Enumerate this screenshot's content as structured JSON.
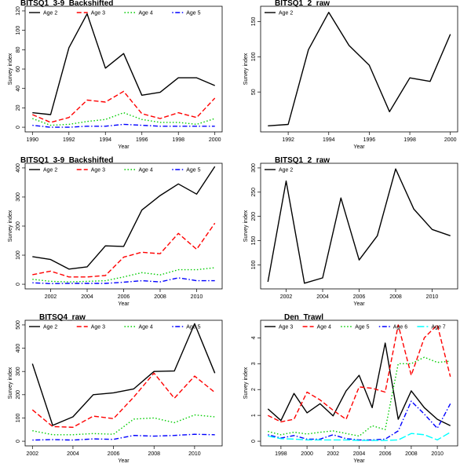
{
  "chart_data": [
    {
      "type": "line",
      "title": "BITSQ1_3-9_Backshifted",
      "xlabel": "Year",
      "ylabel": "Survey index",
      "xlim": [
        1990,
        2000
      ],
      "ylim": [
        0,
        120
      ],
      "xticks": [
        1990,
        1992,
        1994,
        1996,
        1998,
        2000
      ],
      "yticks": [
        0,
        20,
        40,
        60,
        80,
        100,
        120
      ],
      "x": [
        1990,
        1991,
        1992,
        1993,
        1994,
        1995,
        1996,
        1997,
        1998,
        1999,
        2000
      ],
      "legend": "top-left",
      "series": [
        {
          "name": "Age 2",
          "color": "#000000",
          "dash": "solid",
          "values": [
            15,
            13,
            82,
            117,
            61,
            76,
            33,
            36,
            51,
            51,
            43
          ]
        },
        {
          "name": "Age 3",
          "color": "#ff0000",
          "dash": "dashed",
          "values": [
            13,
            5,
            10,
            28,
            26,
            37,
            14,
            9,
            15,
            10,
            30
          ]
        },
        {
          "name": "Age 4",
          "color": "#00cc00",
          "dash": "dotted",
          "values": [
            9,
            2,
            3,
            6,
            8,
            15,
            8,
            5,
            5,
            3,
            9
          ]
        },
        {
          "name": "Age 5",
          "color": "#0000ff",
          "dash": "dotdash",
          "values": [
            2,
            0,
            0,
            1,
            1,
            3,
            2,
            1,
            1,
            1,
            1
          ]
        }
      ]
    },
    {
      "type": "line",
      "title": "BITSQ1_2_raw",
      "xlabel": "Year",
      "ylabel": "Survey index",
      "xlim": [
        1991,
        2000
      ],
      "ylim": [
        0,
        165
      ],
      "xticks": [
        1992,
        1994,
        1996,
        1998,
        2000
      ],
      "yticks": [
        50,
        100,
        150
      ],
      "x": [
        1991,
        1992,
        1993,
        1994,
        1995,
        1996,
        1997,
        1998,
        1999,
        2000
      ],
      "legend": "top-left",
      "series": [
        {
          "name": "Age 2",
          "color": "#000000",
          "dash": "solid",
          "values": [
            2,
            4,
            110,
            163,
            116,
            88,
            22,
            70,
            65,
            132
          ]
        }
      ]
    },
    {
      "type": "line",
      "title": "BITSQ1_3-9_Backshifted",
      "xlabel": "Year",
      "ylabel": "Survey index",
      "xlim": [
        2001,
        2011
      ],
      "ylim": [
        0,
        400
      ],
      "xticks": [
        2002,
        2004,
        2006,
        2008,
        2010
      ],
      "yticks": [
        0,
        100,
        200,
        300,
        400
      ],
      "x": [
        2001,
        2002,
        2003,
        2004,
        2005,
        2006,
        2007,
        2008,
        2009,
        2010,
        2011
      ],
      "legend": "top-left",
      "series": [
        {
          "name": "Age 2",
          "color": "#000000",
          "dash": "solid",
          "values": [
            95,
            85,
            52,
            60,
            132,
            130,
            255,
            305,
            345,
            310,
            405
          ]
        },
        {
          "name": "Age 3",
          "color": "#ff0000",
          "dash": "dashed",
          "values": [
            33,
            45,
            25,
            25,
            30,
            93,
            110,
            105,
            175,
            120,
            210
          ]
        },
        {
          "name": "Age 4",
          "color": "#00cc00",
          "dash": "dotted",
          "values": [
            17,
            10,
            8,
            10,
            12,
            25,
            40,
            32,
            50,
            50,
            57
          ]
        },
        {
          "name": "Age 5",
          "color": "#0000ff",
          "dash": "dotdash",
          "values": [
            5,
            2,
            3,
            3,
            3,
            7,
            12,
            8,
            22,
            12,
            12
          ]
        }
      ]
    },
    {
      "type": "line",
      "title": "BITSQ1_2_raw",
      "xlabel": "Year",
      "ylabel": "Survey index",
      "xlim": [
        2001,
        2011
      ],
      "ylim": [
        60,
        300
      ],
      "xticks": [
        2002,
        2004,
        2006,
        2008,
        2010
      ],
      "yticks": [
        100,
        150,
        200,
        250,
        300
      ],
      "x": [
        2001,
        2002,
        2003,
        2004,
        2005,
        2006,
        2007,
        2008,
        2009,
        2010,
        2011
      ],
      "legend": "top-left",
      "series": [
        {
          "name": "Age 2",
          "color": "#000000",
          "dash": "solid",
          "values": [
            65,
            273,
            62,
            73,
            238,
            110,
            160,
            298,
            215,
            173,
            160
          ]
        }
      ]
    },
    {
      "type": "line",
      "title": "BITSQ4_raw",
      "xlabel": "Year",
      "ylabel": "Survey index",
      "xlim": [
        2002,
        2011
      ],
      "ylim": [
        0,
        500
      ],
      "xticks": [
        2002,
        2004,
        2006,
        2008,
        2010
      ],
      "yticks": [
        0,
        100,
        200,
        300,
        400,
        500
      ],
      "x": [
        2002,
        2003,
        2004,
        2005,
        2006,
        2007,
        2008,
        2009,
        2010,
        2011
      ],
      "legend": "top-left",
      "series": [
        {
          "name": "Age 2",
          "color": "#000000",
          "dash": "solid",
          "values": [
            333,
            68,
            105,
            200,
            208,
            225,
            300,
            302,
            505,
            293
          ]
        },
        {
          "name": "Age 3",
          "color": "#ff0000",
          "dash": "dashed",
          "values": [
            135,
            63,
            60,
            108,
            97,
            190,
            293,
            185,
            280,
            210
          ]
        },
        {
          "name": "Age 4",
          "color": "#00cc00",
          "dash": "dotted",
          "values": [
            45,
            28,
            28,
            33,
            30,
            95,
            100,
            80,
            113,
            105
          ]
        },
        {
          "name": "Age 5",
          "color": "#0000ff",
          "dash": "dotdash",
          "values": [
            5,
            7,
            5,
            10,
            8,
            25,
            22,
            25,
            30,
            28
          ]
        }
      ]
    },
    {
      "type": "line",
      "title": "Den_Trawl",
      "xlabel": "Year",
      "ylabel": "Survey index",
      "xlim": [
        1997,
        2011
      ],
      "ylim": [
        0,
        4.5
      ],
      "xticks": [
        1998,
        2000,
        2002,
        2004,
        2006,
        2008,
        2010
      ],
      "yticks": [
        0,
        1,
        2,
        3,
        4
      ],
      "x": [
        1997,
        1998,
        1999,
        2000,
        2001,
        2002,
        2003,
        2004,
        2005,
        2006,
        2007,
        2008,
        2009,
        2010,
        2011
      ],
      "legend": "top-left",
      "series": [
        {
          "name": "Age 3",
          "color": "#000000",
          "dash": "solid",
          "values": [
            1.25,
            0.8,
            1.85,
            1.1,
            1.45,
            0.98,
            1.95,
            2.55,
            1.3,
            3.8,
            0.85,
            1.95,
            1.3,
            0.85,
            0.6
          ]
        },
        {
          "name": "Age 4",
          "color": "#ff0000",
          "dash": "dashed",
          "values": [
            1.0,
            0.75,
            0.85,
            1.9,
            1.6,
            1.2,
            0.85,
            2.1,
            2.05,
            1.9,
            4.5,
            2.55,
            4.0,
            4.5,
            2.5
          ]
        },
        {
          "name": "Age 5",
          "color": "#00cc00",
          "dash": "dotted",
          "values": [
            0.38,
            0.25,
            0.35,
            0.28,
            0.35,
            0.4,
            0.3,
            0.2,
            0.6,
            0.45,
            3.0,
            3.0,
            3.25,
            3.05,
            3.1
          ]
        },
        {
          "name": "Age 6",
          "color": "#0000ff",
          "dash": "dotdash",
          "values": [
            0.25,
            0.12,
            0.22,
            0.08,
            0.08,
            0.25,
            0.1,
            0.05,
            0.05,
            0.08,
            0.4,
            1.55,
            1.05,
            0.5,
            1.45
          ]
        },
        {
          "name": "Age 7",
          "color": "#00ffff",
          "dash": "longdash",
          "values": [
            0.2,
            0.1,
            0.08,
            0.05,
            0.05,
            0.05,
            0.05,
            0.03,
            0.03,
            0.03,
            0.05,
            0.3,
            0.25,
            0.05,
            0.35
          ]
        }
      ]
    }
  ]
}
